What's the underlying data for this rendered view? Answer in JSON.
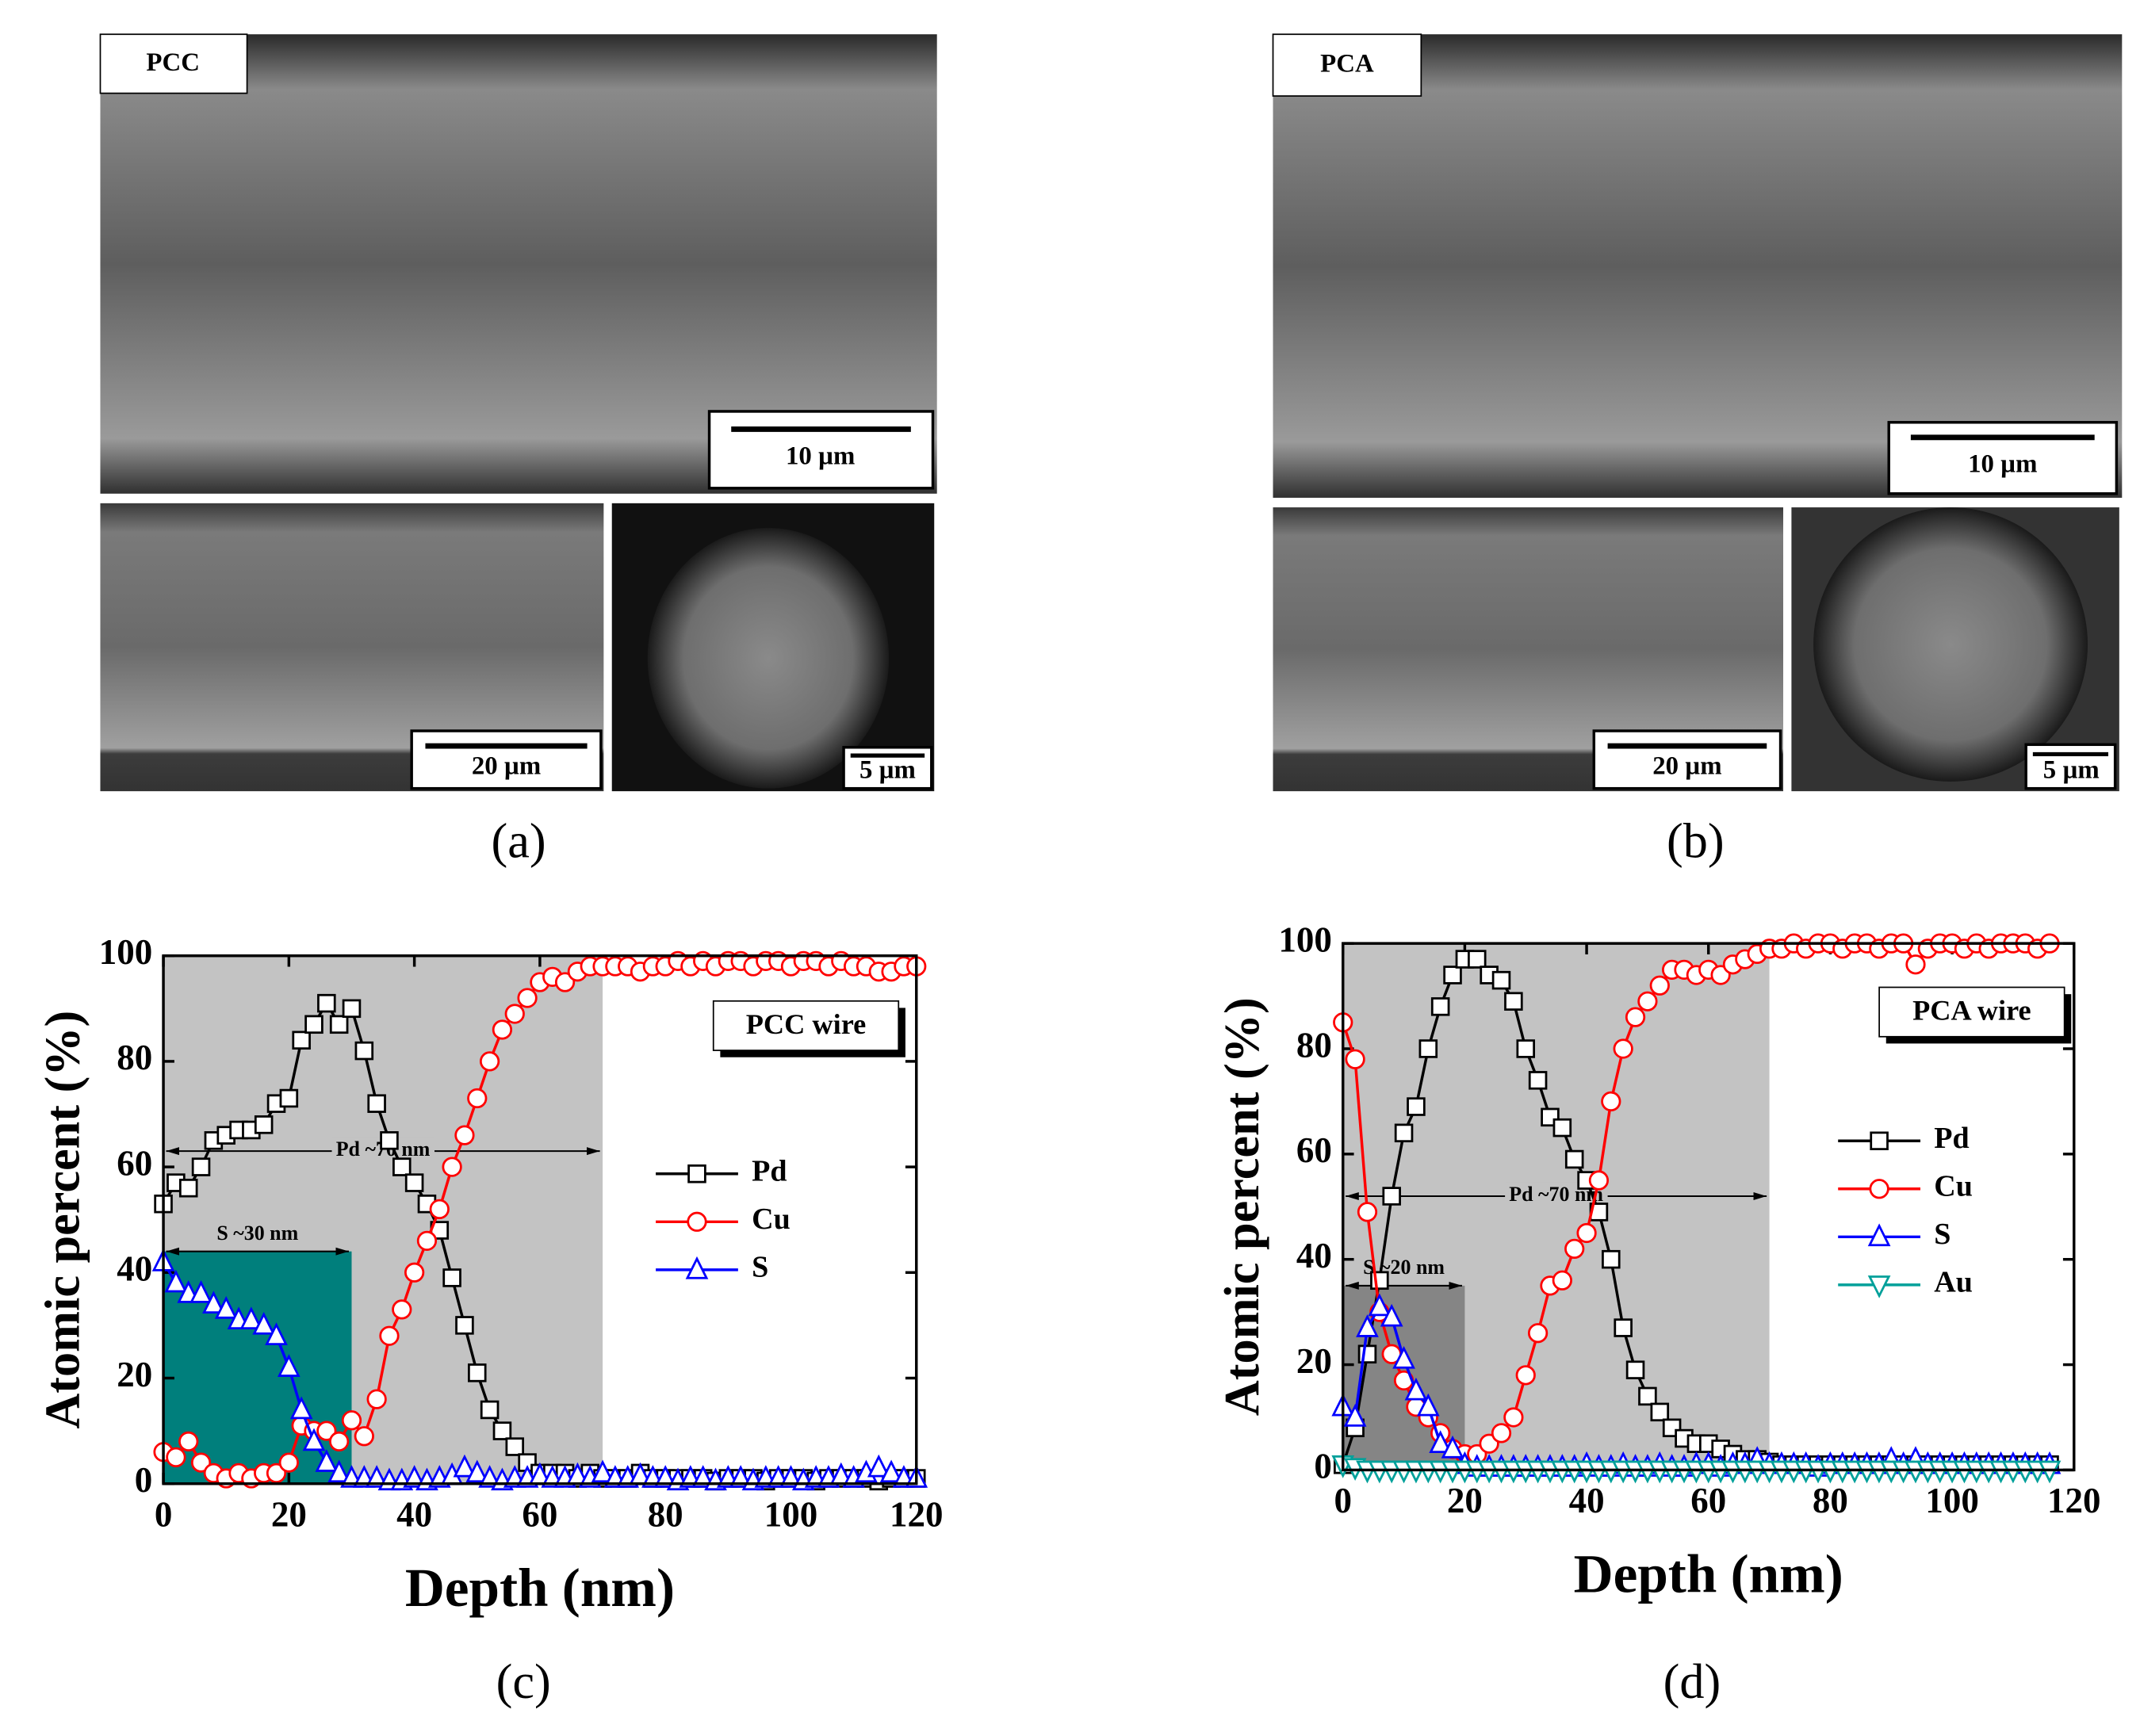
{
  "images": [
    {
      "label": "PCC",
      "scale_bar": "10 µm"
    },
    {
      "scale_bar": "20 µm"
    },
    {
      "scale_bar": "5 µm"
    },
    {
      "label": "PCA",
      "scale_bar": "10 µm"
    },
    {
      "scale_bar": "20 µm"
    },
    {
      "scale_bar": "5 µm"
    }
  ],
  "panel_labels": [
    "(a)",
    "(b)"
  ],
  "chart_data": [
    {
      "type": "line",
      "caption": "(c)",
      "x_label": "Depth (nm)",
      "y_label": "Atomic percent (%)",
      "inset_label": "PCC wire",
      "xlim": [
        0,
        120
      ],
      "ylim": [
        0,
        100
      ],
      "xticks": [
        0,
        20,
        40,
        60,
        80,
        100,
        120
      ],
      "yticks": [
        0,
        20,
        40,
        60,
        80,
        100
      ],
      "shaded_regions": [
        {
          "x": [
            0,
            70
          ],
          "y": [
            0,
            100
          ],
          "color": "#c3c3c3"
        },
        {
          "x": [
            0,
            30
          ],
          "y": [
            0,
            44
          ],
          "color": "#007f7c"
        }
      ],
      "annotations": [
        {
          "text": "Pd ~70 nm",
          "x": [
            0,
            70
          ],
          "y": 63
        },
        {
          "text": "S ~30 nm",
          "x": [
            0,
            30
          ],
          "y": 44
        }
      ],
      "x": [
        0,
        2,
        4,
        6,
        8,
        10,
        12,
        14,
        16,
        18,
        20,
        22,
        24,
        26,
        28,
        30,
        32,
        34,
        36,
        38,
        40,
        42,
        44,
        46,
        48,
        50,
        52,
        54,
        56,
        58,
        60,
        62,
        64,
        66,
        68,
        70,
        72,
        74,
        76,
        78,
        80,
        82,
        84,
        86,
        88,
        90,
        92,
        94,
        96,
        98,
        100,
        102,
        104,
        106,
        108,
        110,
        112,
        114,
        116,
        118,
        120
      ],
      "series": [
        {
          "name": "Pd",
          "color": "#000000",
          "marker": "square",
          "values": [
            53,
            57,
            56,
            60,
            65,
            66,
            67,
            67,
            68,
            72,
            73,
            84,
            87,
            91,
            87,
            90,
            82,
            72,
            65,
            60,
            57,
            53,
            48,
            39,
            30,
            21,
            14,
            10,
            7,
            4,
            2,
            2,
            2,
            1,
            2,
            1,
            1,
            1,
            2,
            1,
            1,
            1,
            1,
            1,
            0.5,
            1,
            1,
            1,
            0.5,
            1,
            1,
            1,
            0.5,
            1,
            1,
            1,
            1,
            0.5,
            1,
            1,
            1
          ]
        },
        {
          "name": "Cu",
          "color": "#ff0000",
          "marker": "circle",
          "values": [
            6,
            5,
            8,
            4,
            2,
            1,
            2,
            1,
            2,
            2,
            4,
            11,
            10,
            10,
            8,
            12,
            9,
            16,
            28,
            33,
            40,
            46,
            52,
            60,
            66,
            73,
            80,
            86,
            89,
            92,
            95,
            96,
            95,
            97,
            98,
            98,
            98,
            98,
            97,
            98,
            98,
            99,
            98,
            99,
            98,
            99,
            99,
            98,
            99,
            99,
            98,
            99,
            99,
            98,
            99,
            98,
            98,
            97,
            97,
            98,
            98
          ]
        },
        {
          "name": "S",
          "color": "#0000ff",
          "marker": "triangle-up",
          "values": [
            42,
            38,
            36,
            36,
            34,
            33,
            31,
            31,
            30,
            28,
            22,
            14,
            8,
            4,
            2,
            1,
            1,
            1,
            0.5,
            0.5,
            1,
            0.5,
            1,
            1.5,
            3,
            2,
            1,
            0.5,
            1,
            1,
            1.5,
            1,
            1,
            1.5,
            1,
            2,
            1,
            1,
            1.5,
            1,
            1,
            0.5,
            1,
            1,
            0.5,
            1,
            1,
            0.5,
            1,
            1,
            1,
            0.5,
            1,
            1,
            1.5,
            1,
            2,
            3,
            2,
            1,
            1
          ]
        }
      ]
    },
    {
      "type": "line",
      "caption": "(d)",
      "x_label": "Depth (nm)",
      "y_label": "Atomic percent (%)",
      "inset_label": "PCA wire",
      "xlim": [
        0,
        120
      ],
      "ylim": [
        0,
        100
      ],
      "xticks": [
        0,
        20,
        40,
        60,
        80,
        100,
        120
      ],
      "yticks": [
        0,
        20,
        40,
        60,
        80,
        100
      ],
      "shaded_regions": [
        {
          "x": [
            0,
            70
          ],
          "y": [
            0,
            100
          ],
          "color": "#c3c3c3"
        },
        {
          "x": [
            0,
            20
          ],
          "y": [
            0,
            35
          ],
          "color": "#858585"
        }
      ],
      "annotations": [
        {
          "text": "Pd ~70 nm",
          "x": [
            0,
            70
          ],
          "y": 52
        },
        {
          "text": "S ~20 nm",
          "x": [
            0,
            20
          ],
          "y": 35
        }
      ],
      "x": [
        0,
        2,
        4,
        6,
        8,
        10,
        12,
        14,
        16,
        18,
        20,
        22,
        24,
        26,
        28,
        30,
        32,
        34,
        36,
        38,
        40,
        42,
        44,
        46,
        48,
        50,
        52,
        54,
        56,
        58,
        60,
        62,
        64,
        66,
        68,
        70,
        72,
        74,
        76,
        78,
        80,
        82,
        84,
        86,
        88,
        90,
        92,
        94,
        96,
        98,
        100,
        102,
        104,
        106,
        108,
        110,
        112,
        114,
        116
      ],
      "series": [
        {
          "name": "Pd",
          "color": "#000000",
          "marker": "square",
          "values": [
            1,
            8,
            22,
            36,
            52,
            64,
            69,
            80,
            88,
            94,
            97,
            97,
            94,
            93,
            89,
            80,
            74,
            67,
            65,
            59,
            55,
            49,
            40,
            27,
            19,
            14,
            11,
            8,
            6,
            5,
            5,
            4,
            3,
            2,
            2,
            1.5,
            1,
            1,
            1,
            1,
            1,
            1,
            1,
            1,
            1,
            1,
            1,
            1,
            1,
            1,
            1,
            1,
            1,
            1,
            1,
            1,
            1,
            1,
            1
          ]
        },
        {
          "name": "Cu",
          "color": "#ff0000",
          "marker": "circle",
          "values": [
            85,
            78,
            49,
            30,
            22,
            17,
            12,
            10,
            7,
            4,
            3,
            3,
            5,
            7,
            10,
            18,
            26,
            35,
            36,
            42,
            45,
            55,
            70,
            80,
            86,
            89,
            92,
            95,
            95,
            94,
            95,
            94,
            96,
            97,
            98,
            99,
            99,
            100,
            99,
            100,
            100,
            99,
            100,
            100,
            99,
            100,
            100,
            96,
            99,
            100,
            100,
            99,
            100,
            99,
            100,
            100,
            100,
            99,
            100
          ]
        },
        {
          "name": "S",
          "color": "#0000ff",
          "marker": "triangle-up",
          "values": [
            12,
            10,
            27,
            31,
            29,
            21,
            15,
            12,
            5,
            4,
            1,
            0.5,
            0.5,
            0.5,
            0.5,
            0.5,
            0.5,
            0.5,
            0.5,
            0.5,
            1,
            0.5,
            0.5,
            1,
            0.5,
            0.5,
            1,
            0.5,
            0.5,
            1,
            1,
            0.5,
            1,
            1,
            2,
            1,
            1,
            1,
            1,
            0.5,
            1,
            1,
            1,
            1,
            1,
            2,
            1,
            2,
            1,
            1,
            1,
            1,
            1,
            1,
            1,
            1,
            1,
            1,
            1
          ]
        },
        {
          "name": "Au",
          "color": "#00a09a",
          "marker": "triangle-down",
          "values": [
            1,
            0.5,
            0,
            0,
            0,
            0,
            0,
            0,
            0,
            0,
            0,
            0,
            0,
            0,
            0,
            0,
            0,
            0,
            0,
            0,
            0,
            0,
            0,
            0,
            0,
            0,
            0,
            0,
            0,
            0,
            0,
            0,
            0,
            0,
            0,
            0,
            0,
            0,
            0,
            0,
            0,
            0,
            0,
            0,
            0,
            0,
            0,
            0,
            0,
            0,
            0,
            0,
            0,
            0,
            0,
            0,
            0,
            0,
            0
          ]
        }
      ]
    }
  ]
}
